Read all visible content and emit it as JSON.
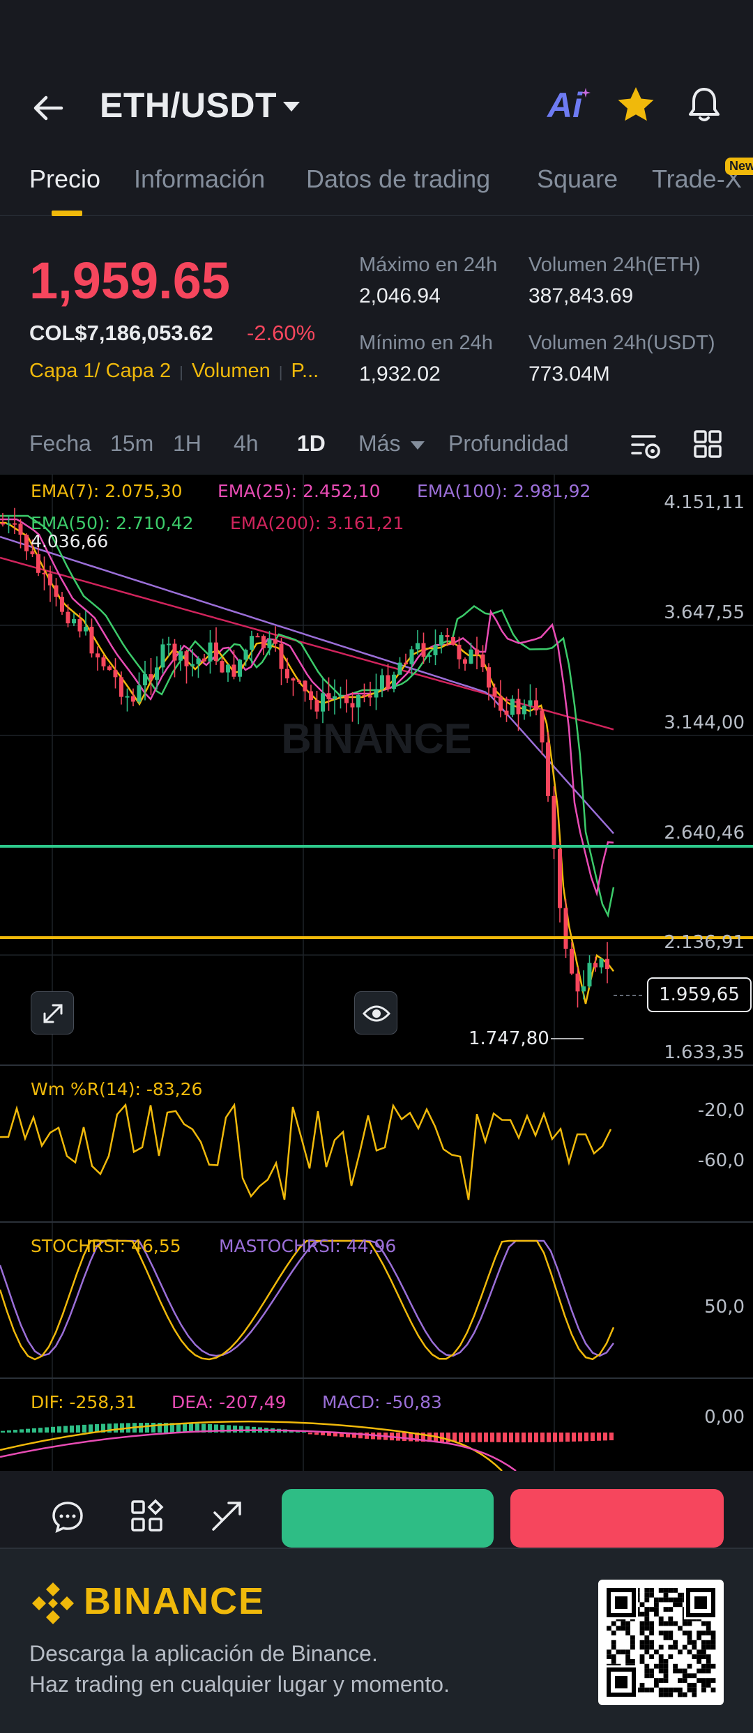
{
  "header": {
    "pair": "ETH/USDT",
    "ai_label": "Ai"
  },
  "tabs": [
    {
      "label": "Precio",
      "active": true
    },
    {
      "label": "Información"
    },
    {
      "label": "Datos de trading"
    },
    {
      "label": "Square"
    },
    {
      "label": "Trade-X",
      "badge": "New"
    }
  ],
  "ticker": {
    "last_price": "1,959.65",
    "fiat_price": "COL$7,186,053.62",
    "change_pct": "-2.60%",
    "tags": [
      "Capa 1/ Capa 2",
      "Volumen",
      "P..."
    ],
    "high_label": "Máximo en 24h",
    "high_value": "2,046.94",
    "low_label": "Mínimo en 24h",
    "low_value": "1,932.02",
    "vol_base_label": "Volumen 24h(ETH)",
    "vol_base_value": "387,843.69",
    "vol_quote_label": "Volumen 24h(USDT)",
    "vol_quote_value": "773.04M"
  },
  "toolbar": {
    "items": [
      "Fecha",
      "15m",
      "1H",
      "4h",
      "1D",
      "Más",
      "Profundidad"
    ],
    "active": "1D"
  },
  "chart": {
    "ema_labels": [
      "EMA(7): 2.075,30",
      "EMA(25): 2.452,10",
      "EMA(100): 2.981,92",
      "EMA(50): 2.710,42",
      "EMA(200): 3.161,21"
    ],
    "price_axis": [
      "4.151,11",
      "3.647,55",
      "3.144,00",
      "2.640,46",
      "2.136,91",
      "1.633,35"
    ],
    "high_marker": "4.036,66",
    "low_marker": "1.747,80",
    "current_price_tag": "1.959,65",
    "watermark": "BINANCE",
    "wr_label": "Wm %R(14): -83,26",
    "wr_axis": [
      "-20,0",
      "-60,0"
    ],
    "stoch_label": "STOCHRSI: 46,55",
    "mastoch_label": "MASTOCHRSI: 44,96",
    "stoch_axis": [
      "50,0"
    ],
    "macd_dif": "DIF: -258,31",
    "macd_dea": "DEA: -207,49",
    "macd_val": "MACD: -50,83",
    "macd_axis": [
      "0,00"
    ]
  },
  "colors": {
    "up": "#2EBD85",
    "down": "#F6465D",
    "accent": "#F0B90B",
    "ema7": "#F0B90B",
    "ema25": "#E84CB4",
    "ema50": "#3CCB6A",
    "ema100": "#9B6FD8",
    "ema200": "#D0245C"
  },
  "footer": {
    "brand": "BINANCE",
    "line1": "Descarga la aplicación de Binance.",
    "line2": "Haz trading en cualquier lugar y momento."
  }
}
